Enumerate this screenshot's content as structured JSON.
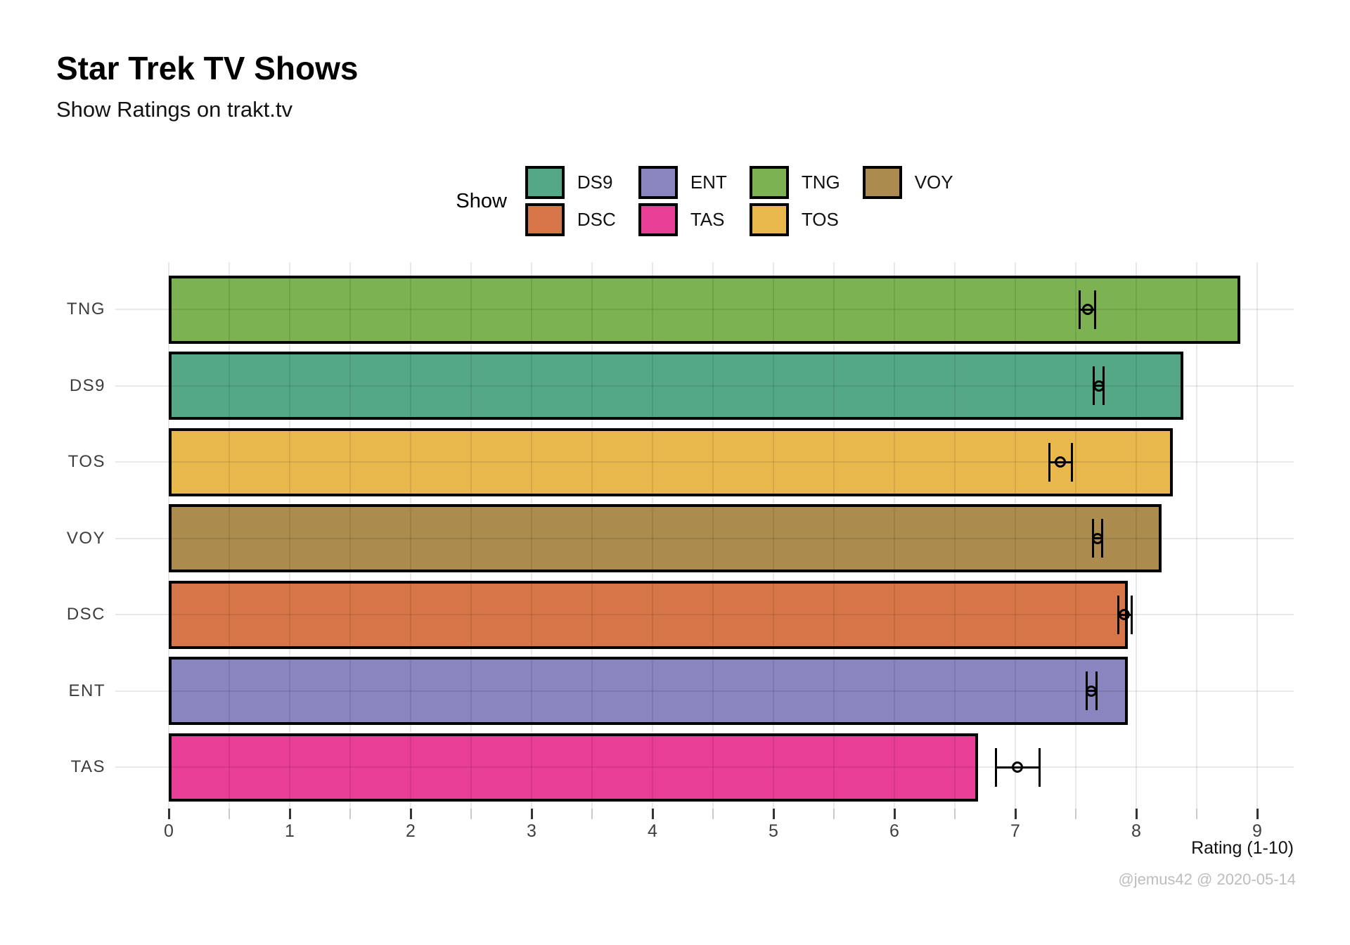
{
  "header": {
    "title": "Star Trek TV Shows",
    "subtitle": "Show Ratings on trakt.tv"
  },
  "caption": "@jemus42 @ 2020-05-14",
  "legend": {
    "title": "Show",
    "position": "top-center",
    "entries": [
      {
        "label": "DS9",
        "color": "#55A886"
      },
      {
        "label": "DSC",
        "color": "#D67648"
      },
      {
        "label": "ENT",
        "color": "#8885BF"
      },
      {
        "label": "TAS",
        "color": "#E83E96"
      },
      {
        "label": "TNG",
        "color": "#7CB252"
      },
      {
        "label": "TOS",
        "color": "#E9B84D"
      },
      {
        "label": "VOY",
        "color": "#AB8B4E"
      }
    ]
  },
  "chart_data": {
    "type": "bar",
    "orientation": "horizontal",
    "title": "Star Trek TV Shows",
    "subtitle": "Show Ratings on trakt.tv",
    "xlabel": "Rating (1-10)",
    "ylabel": "",
    "categories": [
      "TNG",
      "DS9",
      "TOS",
      "VOY",
      "DSC",
      "ENT",
      "TAS"
    ],
    "values": [
      8.86,
      8.39,
      8.3,
      8.21,
      7.93,
      7.93,
      6.69
    ],
    "colors": {
      "TNG": "#7CB252",
      "DS9": "#55A886",
      "TOS": "#E9B84D",
      "VOY": "#AB8B4E",
      "DSC": "#D67648",
      "ENT": "#8885BF",
      "TAS": "#E83E96"
    },
    "error_points": [
      {
        "category": "TNG",
        "mean": 7.6,
        "lower": 7.53,
        "upper": 7.66
      },
      {
        "category": "DS9",
        "mean": 7.69,
        "lower": 7.65,
        "upper": 7.73
      },
      {
        "category": "TOS",
        "mean": 7.37,
        "lower": 7.28,
        "upper": 7.47
      },
      {
        "category": "VOY",
        "mean": 7.68,
        "lower": 7.64,
        "upper": 7.72
      },
      {
        "category": "DSC",
        "mean": 7.9,
        "lower": 7.85,
        "upper": 7.96
      },
      {
        "category": "ENT",
        "mean": 7.63,
        "lower": 7.59,
        "upper": 7.67
      },
      {
        "category": "TAS",
        "mean": 7.02,
        "lower": 6.84,
        "upper": 7.2
      }
    ],
    "xlim": [
      0,
      9.42
    ],
    "xticks": [
      0,
      1,
      2,
      3,
      4,
      5,
      6,
      7,
      8,
      9
    ],
    "minor_tick_step": 0.5,
    "grid": "both",
    "bar_outline_color": "#000000",
    "legend_position": "top"
  }
}
